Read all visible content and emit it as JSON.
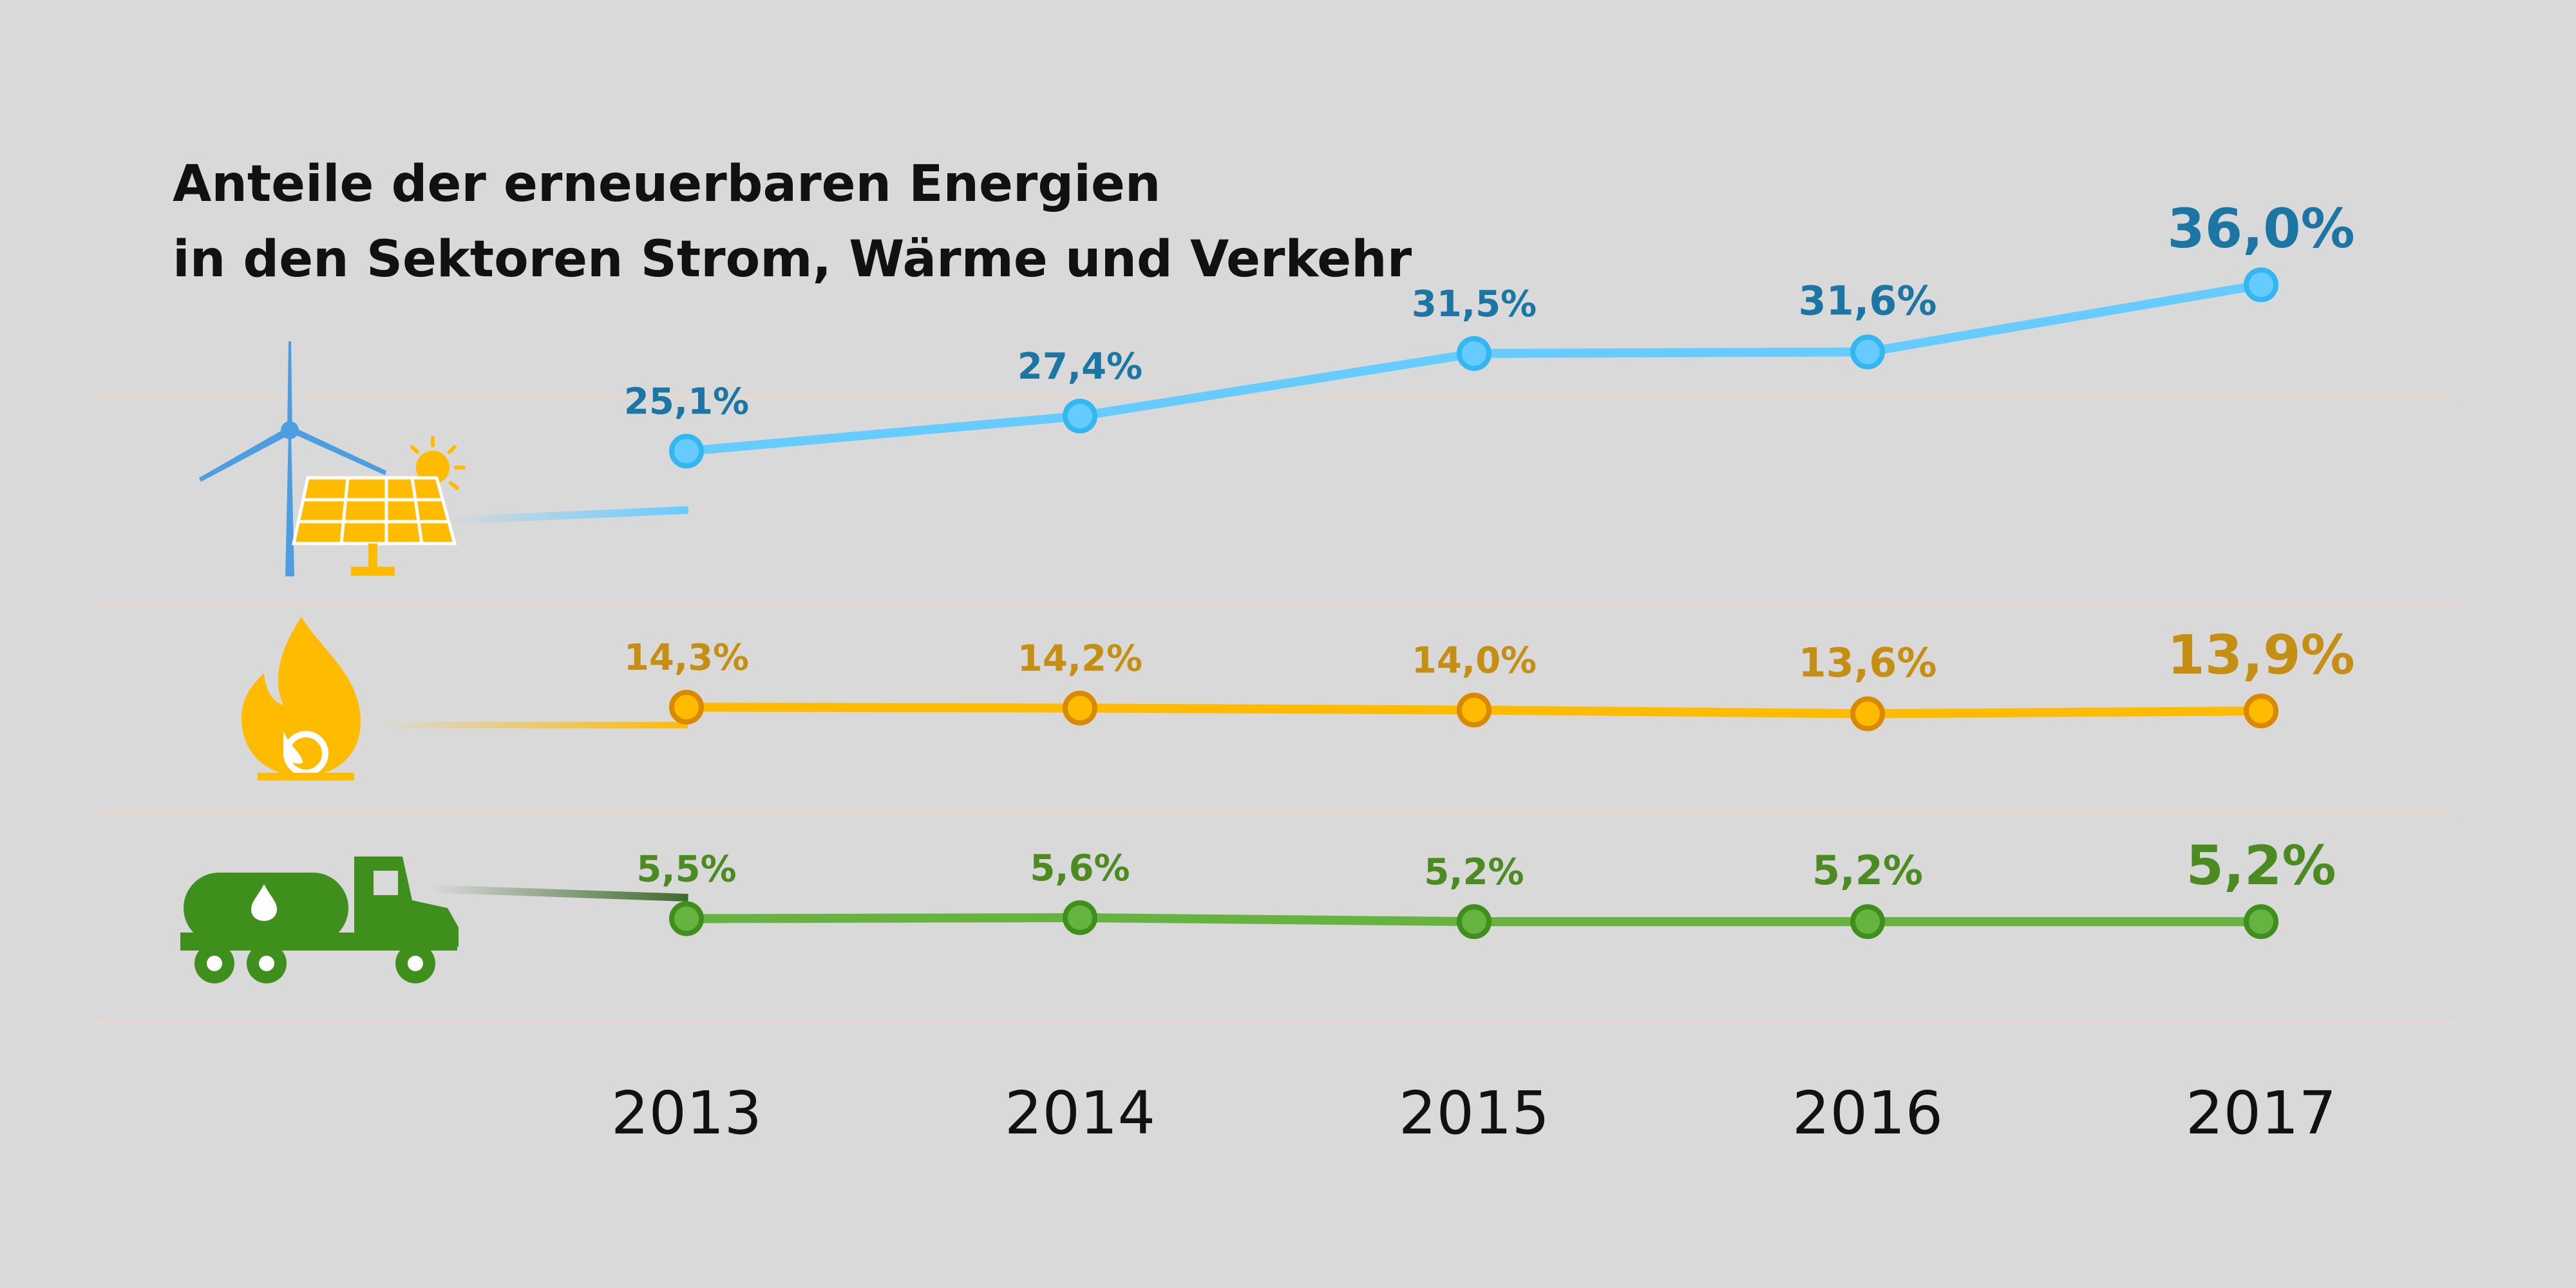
{
  "title": {
    "line1": "Anteile der erneuerbaren Energien",
    "line2": "in den Sektoren Strom, Wärme und Verkehr"
  },
  "chart_data": {
    "type": "line",
    "title": "Anteile der erneuerbaren Energien in den Sektoren Strom, Wärme und Verkehr",
    "xlabel": "",
    "ylabel": "",
    "grid": true,
    "legend": "icons at left of each row",
    "categories": [
      "2013",
      "2014",
      "2015",
      "2016",
      "2017"
    ],
    "series": [
      {
        "icon": "wind-turbine-solar-panel-icon",
        "values": [
          25.1,
          27.4,
          31.5,
          31.6,
          36.0
        ],
        "labels": [
          "25,1%",
          "27,4%",
          "31,5%",
          "31,6%",
          "36,0%"
        ],
        "color": "#66ccff",
        "label_color": "#1b76a3",
        "ylim": [
          15,
          42
        ]
      },
      {
        "icon": "flame-icon",
        "values": [
          14.3,
          14.2,
          14.0,
          13.6,
          13.9
        ],
        "labels": [
          "14,3%",
          "14,2%",
          "14,0%",
          "13,6%",
          "13,9%"
        ],
        "color": "#ffbb00",
        "label_color": "#c48f12",
        "ylim": [
          3,
          25
        ]
      },
      {
        "icon": "tank-truck-icon",
        "values": [
          5.5,
          5.6,
          5.2,
          5.2,
          5.2
        ],
        "labels": [
          "5,5%",
          "5,6%",
          "5,2%",
          "5,2%",
          "5,2%"
        ],
        "color": "#66b342",
        "label_color": "#4c8a22",
        "ylim": [
          -5,
          16
        ]
      }
    ]
  }
}
